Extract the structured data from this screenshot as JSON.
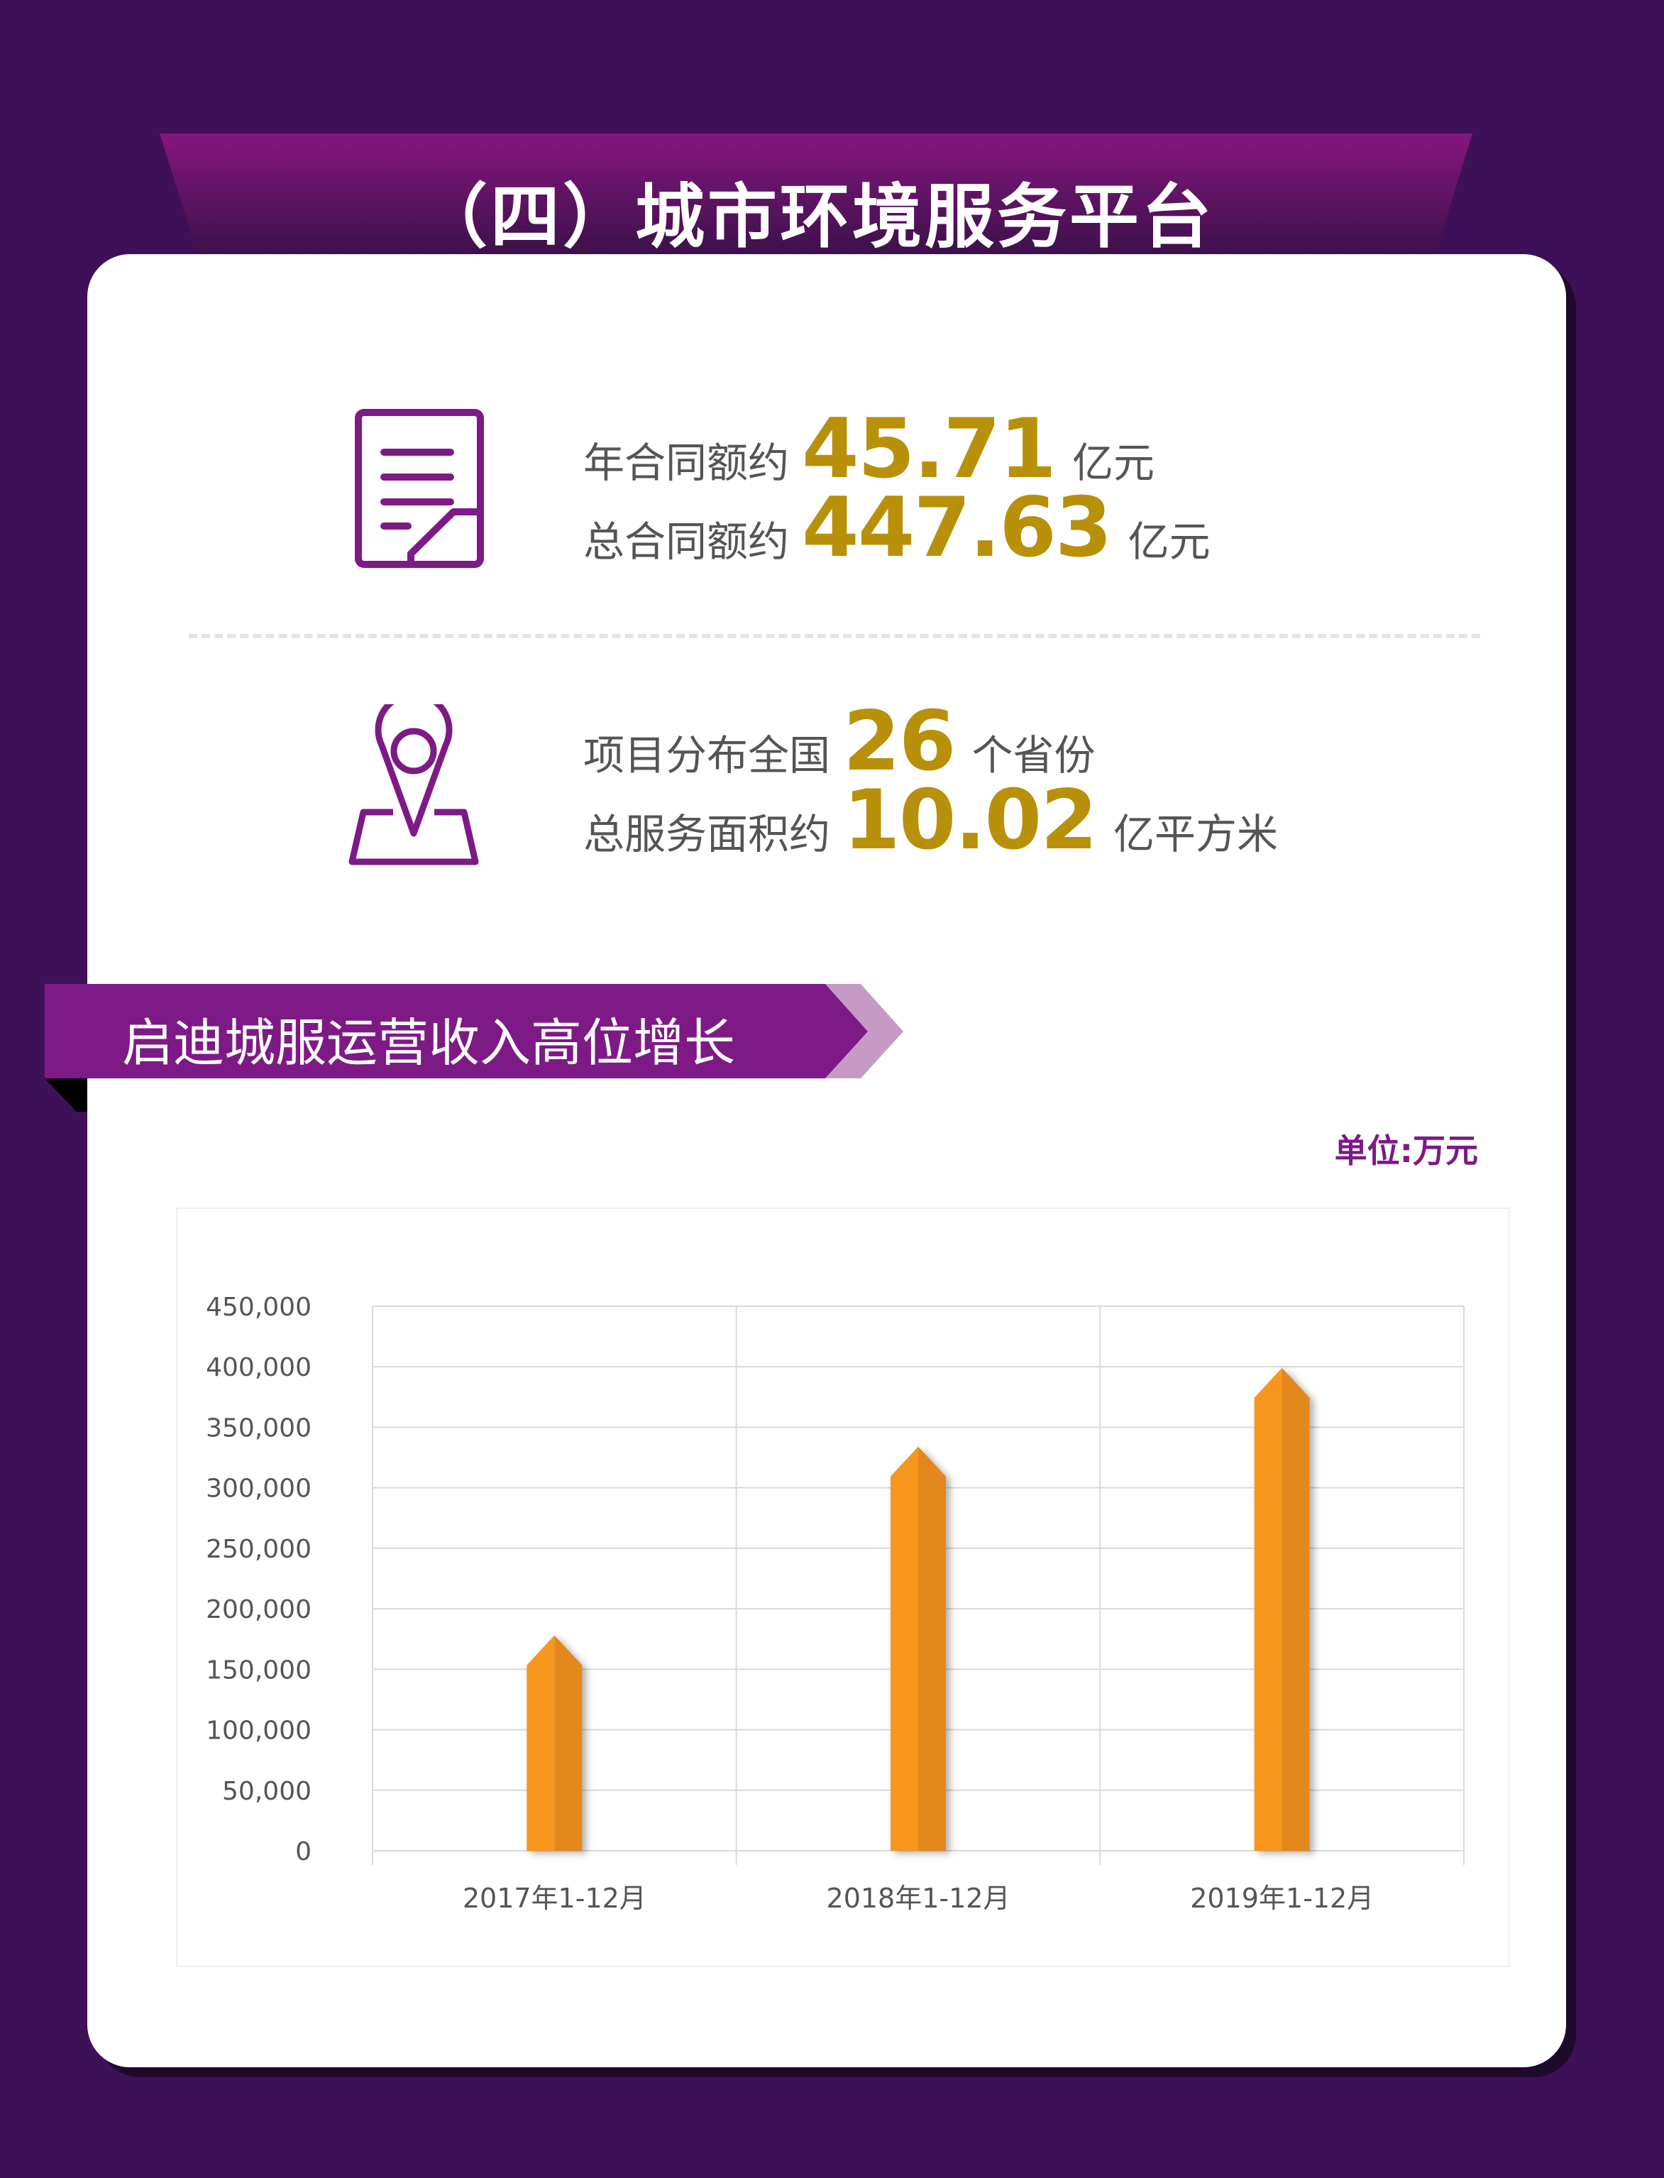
{
  "header": {
    "title": "（四）城市环境服务平台"
  },
  "stats": {
    "annual_contract": {
      "label": "年合同额约",
      "value": "45.71",
      "unit": "亿元"
    },
    "total_contract": {
      "label": "总合同额约",
      "value": "447.63",
      "unit": "亿元"
    },
    "provinces": {
      "label": "项目分布全国",
      "value": "26",
      "unit": "个省份"
    },
    "service_area": {
      "label": "总服务面积约",
      "value": "10.02",
      "unit": "亿平方米"
    }
  },
  "icons": {
    "contract": "document-icon",
    "location": "map-pin-icon"
  },
  "section": {
    "title": "启迪城服运营收入高位增长",
    "unit_label": "单位:万元"
  },
  "colors": {
    "background": "#3e1057",
    "accent_purple": "#7e1a86",
    "number_gold": "#b8900a",
    "bar": "#f7941d"
  },
  "chart_data": {
    "type": "bar",
    "categories": [
      "2017年1-12月",
      "2018年1-12月",
      "2019年1-12月"
    ],
    "values": [
      178000,
      334000,
      399000
    ],
    "ylim": [
      0,
      450000
    ],
    "yticks": [
      "0",
      "50,000",
      "100,000",
      "150,000",
      "200,000",
      "250,000",
      "300,000",
      "350,000",
      "400,000",
      "450,000"
    ],
    "grid": true,
    "title": "",
    "xlabel": "",
    "ylabel": ""
  }
}
